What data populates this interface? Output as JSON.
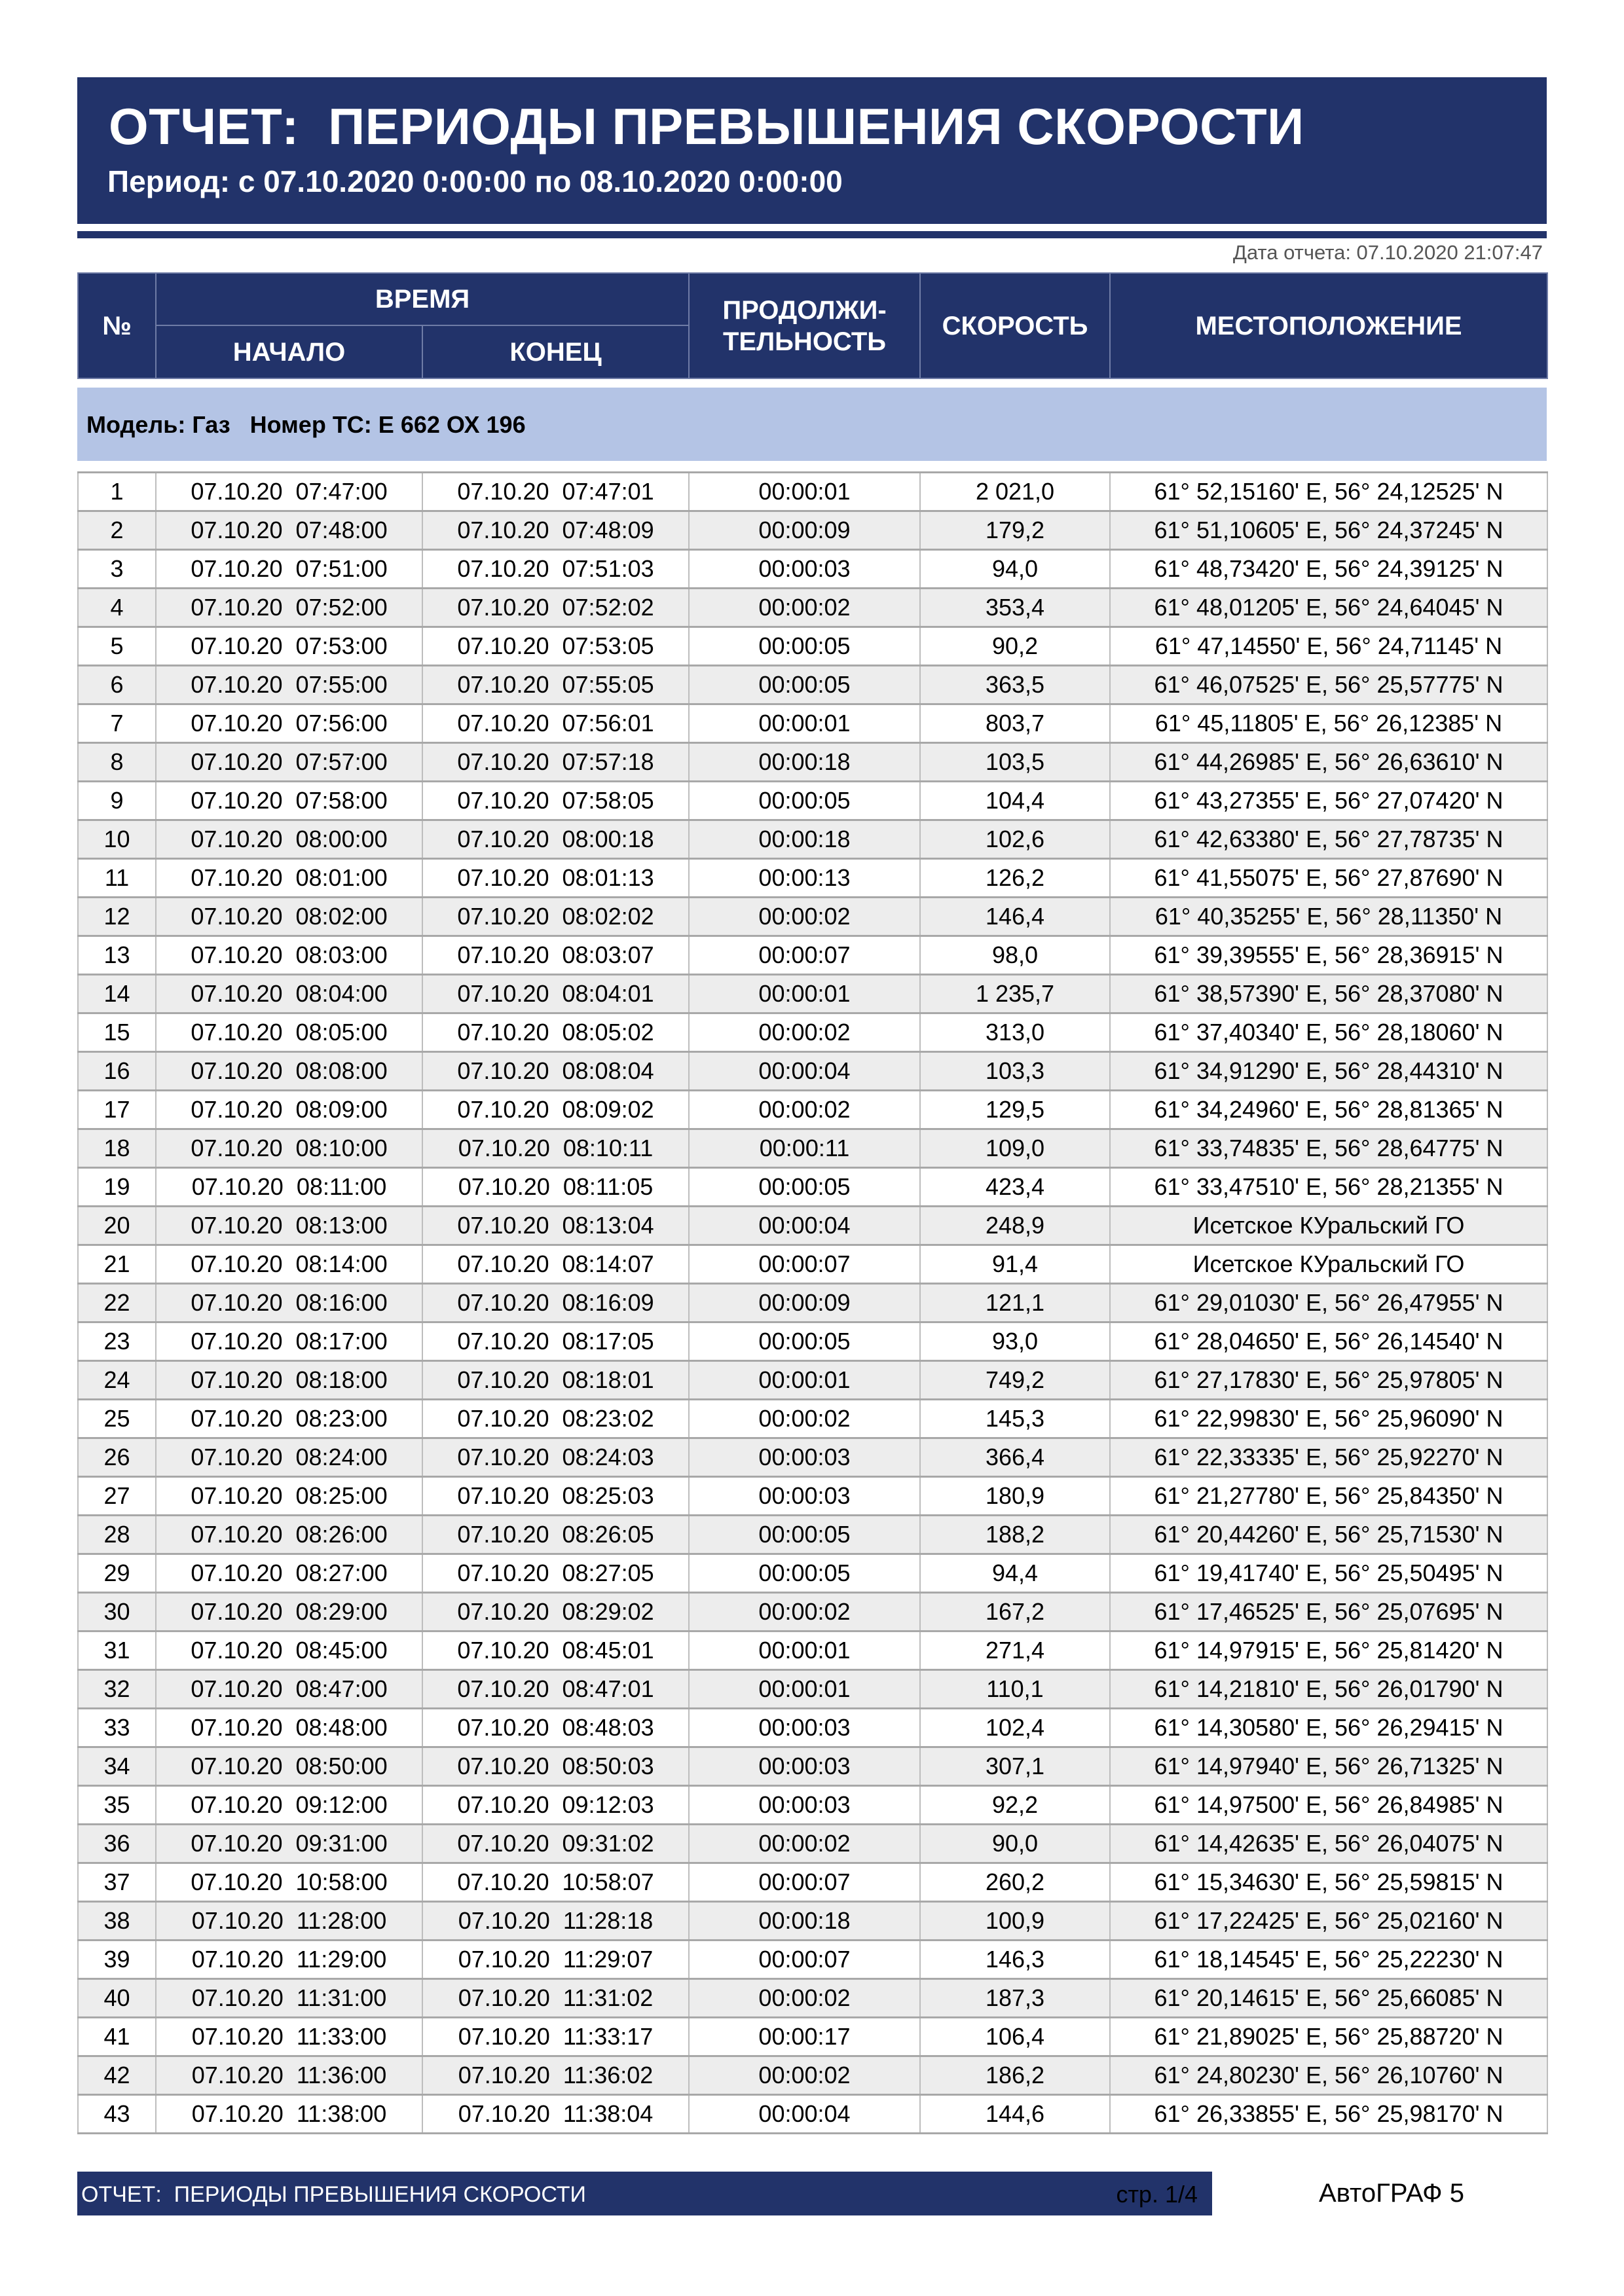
{
  "header": {
    "title": "ОТЧЕТ:  ПЕРИОДЫ ПРЕВЫШЕНИЯ СКОРОСТИ",
    "period": "Период: с 07.10.2020 0:00:00 по 08.10.2020 0:00:00"
  },
  "report_date": "Дата отчета: 07.10.2020 21:07:47",
  "columns": {
    "num": "№",
    "time": "ВРЕМЯ",
    "start": "НАЧАЛО",
    "end": "КОНЕЦ",
    "duration": "ПРОДОЛЖИ-ТЕЛЬНОСТЬ",
    "speed": "СКОРОСТЬ",
    "location": "МЕСТОПОЛОЖЕНИЕ"
  },
  "vehicle": "Модель: Газ   Номер ТС: Е 662 ОХ 196",
  "rows": [
    [
      "1",
      "07.10.20  07:47:00",
      "07.10.20  07:47:01",
      "00:00:01",
      "2 021,0",
      "61° 52,15160' E, 56° 24,12525' N"
    ],
    [
      "2",
      "07.10.20  07:48:00",
      "07.10.20  07:48:09",
      "00:00:09",
      "179,2",
      "61° 51,10605' E, 56° 24,37245' N"
    ],
    [
      "3",
      "07.10.20  07:51:00",
      "07.10.20  07:51:03",
      "00:00:03",
      "94,0",
      "61° 48,73420' E, 56° 24,39125' N"
    ],
    [
      "4",
      "07.10.20  07:52:00",
      "07.10.20  07:52:02",
      "00:00:02",
      "353,4",
      "61° 48,01205' E, 56° 24,64045' N"
    ],
    [
      "5",
      "07.10.20  07:53:00",
      "07.10.20  07:53:05",
      "00:00:05",
      "90,2",
      "61° 47,14550' E, 56° 24,71145' N"
    ],
    [
      "6",
      "07.10.20  07:55:00",
      "07.10.20  07:55:05",
      "00:00:05",
      "363,5",
      "61° 46,07525' E, 56° 25,57775' N"
    ],
    [
      "7",
      "07.10.20  07:56:00",
      "07.10.20  07:56:01",
      "00:00:01",
      "803,7",
      "61° 45,11805' E, 56° 26,12385' N"
    ],
    [
      "8",
      "07.10.20  07:57:00",
      "07.10.20  07:57:18",
      "00:00:18",
      "103,5",
      "61° 44,26985' E, 56° 26,63610' N"
    ],
    [
      "9",
      "07.10.20  07:58:00",
      "07.10.20  07:58:05",
      "00:00:05",
      "104,4",
      "61° 43,27355' E, 56° 27,07420' N"
    ],
    [
      "10",
      "07.10.20  08:00:00",
      "07.10.20  08:00:18",
      "00:00:18",
      "102,6",
      "61° 42,63380' E, 56° 27,78735' N"
    ],
    [
      "11",
      "07.10.20  08:01:00",
      "07.10.20  08:01:13",
      "00:00:13",
      "126,2",
      "61° 41,55075' E, 56° 27,87690' N"
    ],
    [
      "12",
      "07.10.20  08:02:00",
      "07.10.20  08:02:02",
      "00:00:02",
      "146,4",
      "61° 40,35255' E, 56° 28,11350' N"
    ],
    [
      "13",
      "07.10.20  08:03:00",
      "07.10.20  08:03:07",
      "00:00:07",
      "98,0",
      "61° 39,39555' E, 56° 28,36915' N"
    ],
    [
      "14",
      "07.10.20  08:04:00",
      "07.10.20  08:04:01",
      "00:00:01",
      "1 235,7",
      "61° 38,57390' E, 56° 28,37080' N"
    ],
    [
      "15",
      "07.10.20  08:05:00",
      "07.10.20  08:05:02",
      "00:00:02",
      "313,0",
      "61° 37,40340' E, 56° 28,18060' N"
    ],
    [
      "16",
      "07.10.20  08:08:00",
      "07.10.20  08:08:04",
      "00:00:04",
      "103,3",
      "61° 34,91290' E, 56° 28,44310' N"
    ],
    [
      "17",
      "07.10.20  08:09:00",
      "07.10.20  08:09:02",
      "00:00:02",
      "129,5",
      "61° 34,24960' E, 56° 28,81365' N"
    ],
    [
      "18",
      "07.10.20  08:10:00",
      "07.10.20  08:10:11",
      "00:00:11",
      "109,0",
      "61° 33,74835' E, 56° 28,64775' N"
    ],
    [
      "19",
      "07.10.20  08:11:00",
      "07.10.20  08:11:05",
      "00:00:05",
      "423,4",
      "61° 33,47510' E, 56° 28,21355' N"
    ],
    [
      "20",
      "07.10.20  08:13:00",
      "07.10.20  08:13:04",
      "00:00:04",
      "248,9",
      "Исетское КУральский ГО"
    ],
    [
      "21",
      "07.10.20  08:14:00",
      "07.10.20  08:14:07",
      "00:00:07",
      "91,4",
      "Исетское КУральский ГО"
    ],
    [
      "22",
      "07.10.20  08:16:00",
      "07.10.20  08:16:09",
      "00:00:09",
      "121,1",
      "61° 29,01030' E, 56° 26,47955' N"
    ],
    [
      "23",
      "07.10.20  08:17:00",
      "07.10.20  08:17:05",
      "00:00:05",
      "93,0",
      "61° 28,04650' E, 56° 26,14540' N"
    ],
    [
      "24",
      "07.10.20  08:18:00",
      "07.10.20  08:18:01",
      "00:00:01",
      "749,2",
      "61° 27,17830' E, 56° 25,97805' N"
    ],
    [
      "25",
      "07.10.20  08:23:00",
      "07.10.20  08:23:02",
      "00:00:02",
      "145,3",
      "61° 22,99830' E, 56° 25,96090' N"
    ],
    [
      "26",
      "07.10.20  08:24:00",
      "07.10.20  08:24:03",
      "00:00:03",
      "366,4",
      "61° 22,33335' E, 56° 25,92270' N"
    ],
    [
      "27",
      "07.10.20  08:25:00",
      "07.10.20  08:25:03",
      "00:00:03",
      "180,9",
      "61° 21,27780' E, 56° 25,84350' N"
    ],
    [
      "28",
      "07.10.20  08:26:00",
      "07.10.20  08:26:05",
      "00:00:05",
      "188,2",
      "61° 20,44260' E, 56° 25,71530' N"
    ],
    [
      "29",
      "07.10.20  08:27:00",
      "07.10.20  08:27:05",
      "00:00:05",
      "94,4",
      "61° 19,41740' E, 56° 25,50495' N"
    ],
    [
      "30",
      "07.10.20  08:29:00",
      "07.10.20  08:29:02",
      "00:00:02",
      "167,2",
      "61° 17,46525' E, 56° 25,07695' N"
    ],
    [
      "31",
      "07.10.20  08:45:00",
      "07.10.20  08:45:01",
      "00:00:01",
      "271,4",
      "61° 14,97915' E, 56° 25,81420' N"
    ],
    [
      "32",
      "07.10.20  08:47:00",
      "07.10.20  08:47:01",
      "00:00:01",
      "110,1",
      "61° 14,21810' E, 56° 26,01790' N"
    ],
    [
      "33",
      "07.10.20  08:48:00",
      "07.10.20  08:48:03",
      "00:00:03",
      "102,4",
      "61° 14,30580' E, 56° 26,29415' N"
    ],
    [
      "34",
      "07.10.20  08:50:00",
      "07.10.20  08:50:03",
      "00:00:03",
      "307,1",
      "61° 14,97940' E, 56° 26,71325' N"
    ],
    [
      "35",
      "07.10.20  09:12:00",
      "07.10.20  09:12:03",
      "00:00:03",
      "92,2",
      "61° 14,97500' E, 56° 26,84985' N"
    ],
    [
      "36",
      "07.10.20  09:31:00",
      "07.10.20  09:31:02",
      "00:00:02",
      "90,0",
      "61° 14,42635' E, 56° 26,04075' N"
    ],
    [
      "37",
      "07.10.20  10:58:00",
      "07.10.20  10:58:07",
      "00:00:07",
      "260,2",
      "61° 15,34630' E, 56° 25,59815' N"
    ],
    [
      "38",
      "07.10.20  11:28:00",
      "07.10.20  11:28:18",
      "00:00:18",
      "100,9",
      "61° 17,22425' E, 56° 25,02160' N"
    ],
    [
      "39",
      "07.10.20  11:29:00",
      "07.10.20  11:29:07",
      "00:00:07",
      "146,3",
      "61° 18,14545' E, 56° 25,22230' N"
    ],
    [
      "40",
      "07.10.20  11:31:00",
      "07.10.20  11:31:02",
      "00:00:02",
      "187,3",
      "61° 20,14615' E, 56° 25,66085' N"
    ],
    [
      "41",
      "07.10.20  11:33:00",
      "07.10.20  11:33:17",
      "00:00:17",
      "106,4",
      "61° 21,89025' E, 56° 25,88720' N"
    ],
    [
      "42",
      "07.10.20  11:36:00",
      "07.10.20  11:36:02",
      "00:00:02",
      "186,2",
      "61° 24,80230' E, 56° 26,10760' N"
    ],
    [
      "43",
      "07.10.20  11:38:00",
      "07.10.20  11:38:04",
      "00:00:04",
      "144,6",
      "61° 26,33855' E, 56° 25,98170' N"
    ]
  ],
  "footer": {
    "title": "ОТЧЕТ:  ПЕРИОДЫ ПРЕВЫШЕНИЯ СКОРОСТИ",
    "page": "стр. 1/4",
    "brand": "АвтоГРАФ 5"
  },
  "colors": {
    "header_bg": "#22336a",
    "vehicle_band": "#b4c4e5",
    "row_alt": "#ededed"
  }
}
